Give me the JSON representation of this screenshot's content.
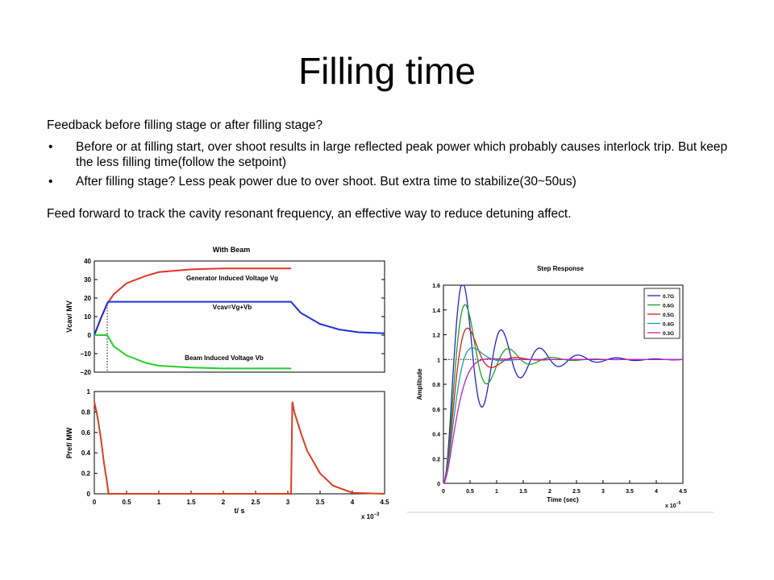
{
  "slide": {
    "title": "Filling time",
    "intro": "Feedback before filling stage or after filling stage?",
    "bullets": [
      "Before or at filling start, over shoot results in large reflected peak power which probably causes interlock trip.  But keep the less filling time(follow the setpoint)",
      "After filling stage? Less peak power due to over shoot. But extra time to stabilize(30~50us)"
    ],
    "footer": "Feed forward to track the cavity resonant frequency, an effective way to reduce detuning affect.",
    "bullet_glyph": "•"
  },
  "chart_data": [
    {
      "type": "line",
      "title": "With Beam",
      "xlabel": "",
      "ylabel": "Vcav/ MV",
      "xlim": [
        0,
        4.5
      ],
      "ylim": [
        -20,
        40
      ],
      "yticks": [
        -20,
        -10,
        0,
        10,
        20,
        30,
        40
      ],
      "ytick_labels": [
        "−20",
        "−10",
        "0",
        "10",
        "20",
        "30",
        "40"
      ],
      "annotations": [
        "Generator Induced Voltage Vg",
        "Vcav=Vg+Vb",
        "Beam Induced Voltage Vb"
      ],
      "series": [
        {
          "name": "Generator Induced Voltage Vg",
          "color": "#e8312a",
          "x": [
            0,
            0.1,
            0.2,
            0.3,
            0.5,
            0.8,
            1.0,
            1.5,
            2.0,
            2.5,
            3.05
          ],
          "y": [
            0,
            9,
            17,
            22,
            28,
            32,
            34,
            35.5,
            36,
            36,
            36
          ]
        },
        {
          "name": "Vcav=Vg+Vb",
          "color": "#1f2fd6",
          "x": [
            0,
            0.1,
            0.2,
            0.22,
            1.0,
            2.0,
            3.05,
            3.2,
            3.5,
            3.8,
            4.1,
            4.5
          ],
          "y": [
            0,
            9,
            17,
            18,
            18,
            18,
            18,
            12,
            6,
            3,
            1.5,
            1
          ]
        },
        {
          "name": "Beam Induced Voltage Vb",
          "color": "#22d02a",
          "x": [
            0,
            0.2,
            0.3,
            0.5,
            0.8,
            1.0,
            1.5,
            2.0,
            2.5,
            3.05
          ],
          "y": [
            0,
            0,
            -6,
            -11,
            -15,
            -16.5,
            -17.5,
            -18,
            -18,
            -18
          ]
        }
      ],
      "markers": {
        "vline_x": 0.2,
        "color": "#000000"
      }
    },
    {
      "type": "line",
      "title": "",
      "xlabel": "t/ s",
      "ylabel": "Pref/ MW",
      "xlim": [
        0,
        4.5
      ],
      "ylim": [
        0,
        1
      ],
      "xticks": [
        0,
        0.5,
        1,
        1.5,
        2,
        2.5,
        3,
        3.5,
        4,
        4.5
      ],
      "xtick_labels": [
        "0",
        "0.5",
        "1",
        "1.5",
        "2",
        "2.5",
        "3",
        "3.5",
        "4",
        "4.5"
      ],
      "yticks": [
        0,
        0.2,
        0.4,
        0.6,
        0.8,
        1
      ],
      "ytick_labels": [
        "0",
        "0.2",
        "0.4",
        "0.6",
        "0.8",
        "1"
      ],
      "x_multiplier": "x 10",
      "x_multiplier_exp": "−3",
      "series": [
        {
          "name": "",
          "color": "#d9401f",
          "x": [
            0,
            0.05,
            0.1,
            0.15,
            0.2,
            0.22,
            3.05,
            3.07,
            3.1,
            3.2,
            3.3,
            3.5,
            3.7,
            4.0,
            4.5
          ],
          "y": [
            0.9,
            0.75,
            0.55,
            0.3,
            0.1,
            0,
            0,
            0.9,
            0.8,
            0.6,
            0.42,
            0.2,
            0.08,
            0.01,
            0
          ]
        }
      ]
    },
    {
      "type": "line",
      "title": "Step Response",
      "xlabel": "Time (sec)",
      "ylabel": "Amplitude",
      "xlim": [
        0,
        4.5
      ],
      "ylim": [
        0,
        1.6
      ],
      "xticks": [
        0,
        0.5,
        1,
        1.5,
        2,
        2.5,
        3,
        3.5,
        4,
        4.5
      ],
      "xtick_labels": [
        "0",
        "0.5",
        "1",
        "1.5",
        "2",
        "2.5",
        "3",
        "3.5",
        "4",
        "4.5"
      ],
      "yticks": [
        0,
        0.2,
        0.4,
        0.6,
        0.8,
        1,
        1.2,
        1.4,
        1.6
      ],
      "ytick_labels": [
        "0",
        "0.2",
        "0.4",
        "0.6",
        "0.8",
        "1",
        "1.2",
        "1.4",
        "1.6"
      ],
      "x_multiplier": "x 10",
      "x_multiplier_exp": "−5",
      "legend_position": "top-right",
      "reference_line": 1,
      "series": [
        {
          "name": "0.7G",
          "color": "#2424c8",
          "zeta": 0.15,
          "wn": 8.8
        },
        {
          "name": "0.6G",
          "color": "#1ea21e",
          "zeta": 0.25,
          "wn": 8.0
        },
        {
          "name": "0.5G",
          "color": "#d42020",
          "zeta": 0.4,
          "wn": 7.6
        },
        {
          "name": "0.4G",
          "color": "#17a0a0",
          "zeta": 0.6,
          "wn": 7.2
        },
        {
          "name": "0.3G",
          "color": "#c020c0",
          "zeta": 0.85,
          "wn": 6.6
        }
      ]
    }
  ]
}
